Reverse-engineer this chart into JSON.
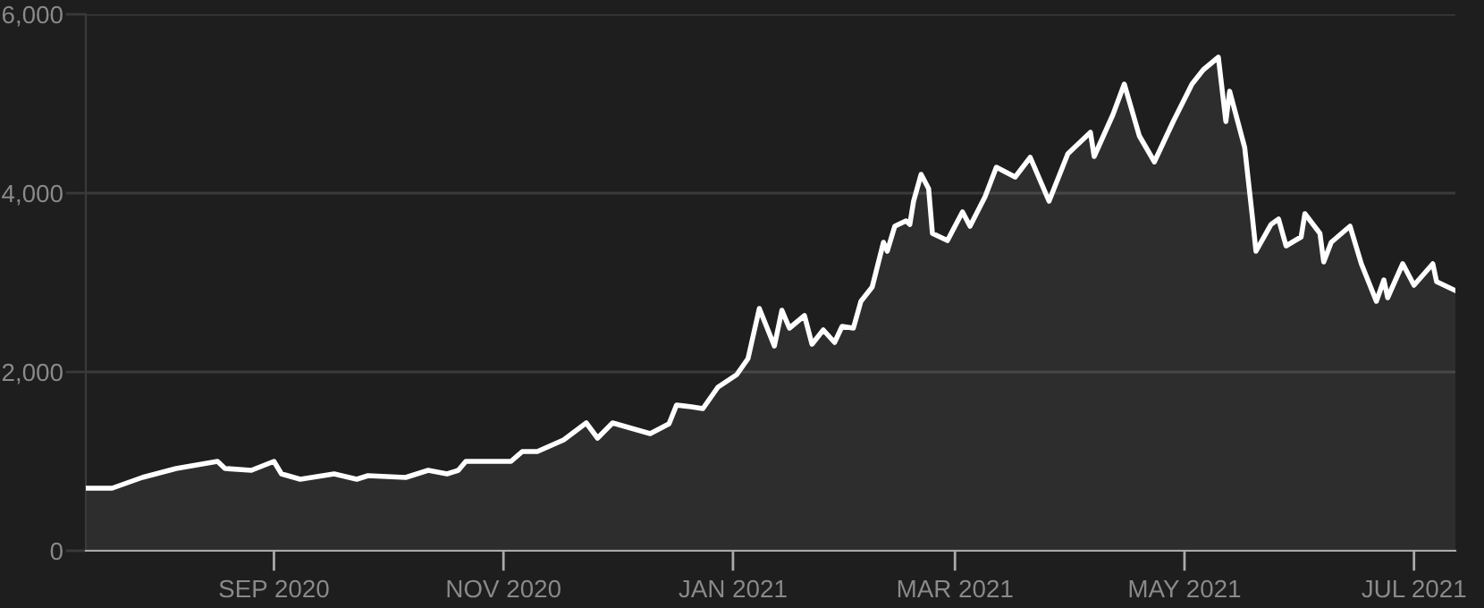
{
  "chart_data": {
    "type": "area",
    "x": [
      "2020-07-13",
      "2020-07-20",
      "2020-07-28",
      "2020-08-06",
      "2020-08-17",
      "2020-08-19",
      "2020-08-26",
      "2020-09-01",
      "2020-09-03",
      "2020-09-08",
      "2020-09-17",
      "2020-09-23",
      "2020-09-26",
      "2020-10-06",
      "2020-10-12",
      "2020-10-17",
      "2020-10-20",
      "2020-10-22",
      "2020-11-03",
      "2020-11-06",
      "2020-11-10",
      "2020-11-17",
      "2020-11-23",
      "2020-11-26",
      "2020-11-30",
      "2020-12-10",
      "2020-12-15",
      "2020-12-17",
      "2020-12-21",
      "2020-12-24",
      "2020-12-28",
      "2021-01-02",
      "2021-01-05",
      "2021-01-08",
      "2021-01-12",
      "2021-01-14",
      "2021-01-16",
      "2021-01-20",
      "2021-01-22",
      "2021-01-25",
      "2021-01-28",
      "2021-01-30",
      "2021-02-02",
      "2021-02-04",
      "2021-02-07",
      "2021-02-10",
      "2021-02-11",
      "2021-02-13",
      "2021-02-16",
      "2021-02-17",
      "2021-02-18",
      "2021-02-20",
      "2021-02-22",
      "2021-02-23",
      "2021-02-27",
      "2021-03-03",
      "2021-03-05",
      "2021-03-09",
      "2021-03-12",
      "2021-03-17",
      "2021-03-21",
      "2021-03-26",
      "2021-03-31",
      "2021-04-06",
      "2021-04-07",
      "2021-04-12",
      "2021-04-15",
      "2021-04-19",
      "2021-04-23",
      "2021-04-28",
      "2021-05-03",
      "2021-05-06",
      "2021-05-10",
      "2021-05-12",
      "2021-05-13",
      "2021-05-17",
      "2021-05-19",
      "2021-05-20",
      "2021-05-24",
      "2021-05-26",
      "2021-05-28",
      "2021-06-01",
      "2021-06-02",
      "2021-06-06",
      "2021-06-07",
      "2021-06-09",
      "2021-06-14",
      "2021-06-17",
      "2021-06-21",
      "2021-06-23",
      "2021-06-24",
      "2021-06-28",
      "2021-07-01",
      "2021-07-06",
      "2021-07-07",
      "2021-07-12"
    ],
    "series": [
      {
        "color": "#ffffff",
        "values": [
          700,
          700,
          820,
          920,
          1000,
          920,
          900,
          1000,
          860,
          800,
          860,
          800,
          840,
          820,
          900,
          860,
          900,
          1000,
          1000,
          1110,
          1110,
          1240,
          1430,
          1260,
          1430,
          1310,
          1420,
          1630,
          1610,
          1590,
          1830,
          1970,
          2150,
          2710,
          2290,
          2690,
          2490,
          2630,
          2310,
          2470,
          2330,
          2510,
          2490,
          2790,
          2950,
          3450,
          3350,
          3630,
          3690,
          3650,
          3910,
          4210,
          4050,
          3550,
          3470,
          3790,
          3630,
          3960,
          4290,
          4180,
          4400,
          3910,
          4440,
          4680,
          4410,
          4880,
          5220,
          4640,
          4350,
          4800,
          5220,
          5380,
          5520,
          4800,
          5140,
          4510,
          3750,
          3350,
          3650,
          3710,
          3410,
          3510,
          3770,
          3550,
          3230,
          3450,
          3630,
          3210,
          2790,
          3030,
          2830,
          3210,
          2970,
          3210,
          3010,
          2910
        ]
      }
    ],
    "xlim": [
      "2020-07-13",
      "2021-07-12"
    ],
    "xticks": [
      {
        "value": "2020-09-01",
        "label": "SEP 2020"
      },
      {
        "value": "2020-11-01",
        "label": "NOV 2020"
      },
      {
        "value": "2021-01-01",
        "label": "JAN 2021"
      },
      {
        "value": "2021-03-01",
        "label": "MAR 2021"
      },
      {
        "value": "2021-05-01",
        "label": "MAY 2021"
      },
      {
        "value": "2021-07-01",
        "label": "JUL 2021"
      }
    ],
    "ylim": [
      0,
      6000
    ],
    "yticks": [
      0,
      {
        "value": 2000,
        "label": "2,000"
      },
      {
        "value": 4000,
        "label": "4,000"
      },
      {
        "value": 6000,
        "label": "6,000"
      }
    ],
    "grid": "y"
  }
}
